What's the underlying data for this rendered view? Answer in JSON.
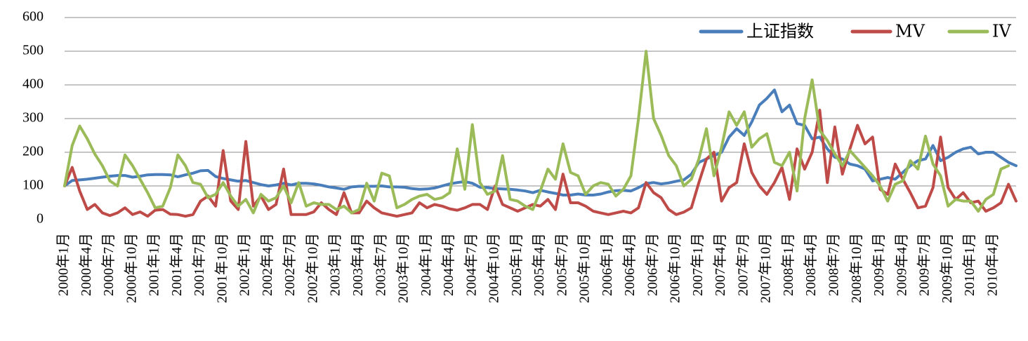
{
  "chart_data": {
    "type": "line",
    "ylim": [
      0,
      600
    ],
    "yticks": [
      0,
      100,
      200,
      300,
      400,
      500,
      600
    ],
    "grid": true,
    "legend_position": "top-right",
    "x_labels": [
      "2000年1月",
      "2000年4月",
      "2000年7月",
      "2000年10月",
      "2001年1月",
      "2001年4月",
      "2001年7月",
      "2001年10月",
      "2002年1月",
      "2002年4月",
      "2002年7月",
      "2002年10月",
      "2003年1月",
      "2003年4月",
      "2003年7月",
      "2003年10月",
      "2004年1月",
      "2004年4月",
      "2004年7月",
      "2004年10月",
      "2005年1月",
      "2005年4月",
      "2005年7月",
      "2005年10月",
      "2006年1月",
      "2006年4月",
      "2006年7月",
      "2006年10月",
      "2007年1月",
      "2007年4月",
      "2007年7月",
      "2007年10月",
      "2008年1月",
      "2008年4月",
      "2008年7月",
      "2008年10月",
      "2009年1月",
      "2009年4月",
      "2009年7月",
      "2009年10月",
      "2010年1月",
      "2010年4月"
    ],
    "series": [
      {
        "name": "上证指数",
        "color": "#4a7ebb",
        "values": [
          100,
          116,
          118,
          120,
          123,
          126,
          129,
          131,
          131,
          126,
          129,
          133,
          134,
          134,
          133,
          127,
          133,
          138,
          145,
          146,
          128,
          122,
          118,
          114,
          116,
          110,
          104,
          100,
          103,
          108,
          103,
          108,
          108,
          106,
          102,
          97,
          94,
          90,
          97,
          99,
          99,
          99,
          100,
          97,
          97,
          96,
          92,
          90,
          91,
          94,
          100,
          106,
          110,
          113,
          108,
          96,
          95,
          92,
          91,
          90,
          88,
          85,
          80,
          87,
          82,
          78,
          73,
          73,
          76,
          73,
          73,
          76,
          82,
          86,
          87,
          85,
          95,
          107,
          110,
          106,
          109,
          114,
          118,
          135,
          170,
          180,
          190,
          200,
          245,
          270,
          250,
          290,
          340,
          360,
          385,
          320,
          340,
          285,
          280,
          240,
          245,
          210,
          185,
          180,
          165,
          160,
          150,
          115,
          120,
          125,
          120,
          140,
          160,
          175,
          180,
          220,
          175,
          185,
          200,
          210,
          215,
          195,
          200,
          200,
          185,
          170,
          160
        ]
      },
      {
        "name": "MV",
        "color": "#be4b48",
        "values": [
          100,
          155,
          85,
          30,
          45,
          20,
          12,
          20,
          35,
          15,
          23,
          10,
          28,
          30,
          16,
          15,
          10,
          15,
          55,
          70,
          40,
          205,
          55,
          30,
          232,
          40,
          70,
          30,
          45,
          150,
          15,
          15,
          15,
          23,
          50,
          30,
          15,
          80,
          20,
          20,
          55,
          35,
          20,
          15,
          10,
          15,
          20,
          50,
          35,
          45,
          40,
          32,
          28,
          35,
          45,
          45,
          30,
          100,
          45,
          35,
          25,
          35,
          45,
          40,
          60,
          30,
          135,
          50,
          50,
          40,
          25,
          20,
          15,
          20,
          25,
          20,
          35,
          110,
          80,
          65,
          30,
          15,
          22,
          35,
          110,
          180,
          200,
          55,
          95,
          110,
          225,
          140,
          100,
          75,
          110,
          155,
          60,
          210,
          150,
          200,
          325,
          110,
          275,
          135,
          210,
          280,
          225,
          245,
          90,
          75,
          165,
          120,
          80,
          35,
          40,
          95,
          245,
          95,
          60,
          80,
          50,
          55,
          25,
          35,
          50,
          105,
          55
        ]
      },
      {
        "name": "IV",
        "color": "#9bbb59",
        "values": [
          100,
          220,
          278,
          240,
          195,
          160,
          115,
          100,
          192,
          160,
          120,
          80,
          35,
          40,
          95,
          192,
          160,
          110,
          105,
          65,
          75,
          110,
          70,
          40,
          60,
          20,
          75,
          55,
          65,
          100,
          50,
          110,
          40,
          50,
          45,
          45,
          30,
          40,
          20,
          30,
          108,
          55,
          138,
          130,
          35,
          45,
          60,
          70,
          75,
          60,
          65,
          80,
          210,
          90,
          282,
          110,
          75,
          85,
          190,
          60,
          55,
          40,
          30,
          85,
          150,
          120,
          225,
          140,
          130,
          75,
          100,
          110,
          105,
          70,
          90,
          130,
          300,
          500,
          300,
          250,
          190,
          160,
          100,
          120,
          180,
          270,
          130,
          215,
          320,
          280,
          320,
          215,
          240,
          255,
          170,
          160,
          200,
          85,
          300,
          415,
          265,
          235,
          195,
          160,
          205,
          180,
          155,
          130,
          100,
          55,
          105,
          115,
          175,
          150,
          248,
          165,
          130,
          40,
          60,
          55,
          55,
          25,
          60,
          75,
          150,
          160
        ]
      }
    ]
  }
}
